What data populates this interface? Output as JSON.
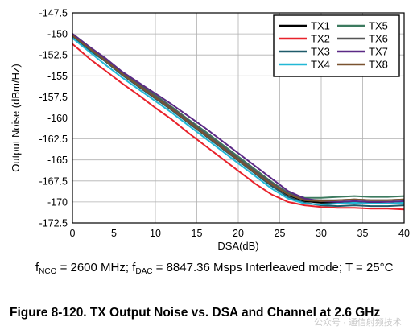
{
  "chart_data": {
    "type": "line",
    "title": "",
    "xlabel": "DSA(dB)",
    "ylabel": "Output Noise (dBm/Hz)",
    "xlim": [
      0,
      40
    ],
    "ylim": [
      -172.5,
      -147.5
    ],
    "xticks": [
      0,
      5,
      10,
      15,
      20,
      25,
      30,
      35,
      40
    ],
    "yticks": [
      -147.5,
      -150,
      -152.5,
      -155,
      -157.5,
      -160,
      -162.5,
      -165,
      -167.5,
      -170,
      -172.5
    ],
    "xtick_labels": [
      "0",
      "5",
      "10",
      "15",
      "20",
      "25",
      "30",
      "35",
      "40"
    ],
    "ytick_labels": [
      "-147.5",
      "-150",
      "-152.5",
      "-155",
      "-157.5",
      "-160",
      "-162.5",
      "-165",
      "-167.5",
      "-170",
      "-172.5"
    ],
    "grid": true,
    "legend_position": "top-right",
    "x": [
      0,
      2,
      4,
      6,
      8,
      10,
      12,
      14,
      16,
      18,
      20,
      22,
      24,
      26,
      28,
      30,
      32,
      34,
      36,
      38,
      40
    ],
    "series": [
      {
        "name": "TX1",
        "color": "#000000",
        "values": [
          -150.2,
          -151.8,
          -153.2,
          -154.8,
          -156.1,
          -157.5,
          -158.9,
          -160.4,
          -161.9,
          -163.4,
          -164.9,
          -166.4,
          -167.9,
          -169.2,
          -169.9,
          -170.1,
          -170.1,
          -170.0,
          -170.1,
          -170.2,
          -170.1
        ]
      },
      {
        "name": "TX2",
        "color": "#e8222b",
        "values": [
          -151.2,
          -152.9,
          -154.4,
          -155.9,
          -157.3,
          -158.8,
          -160.2,
          -161.8,
          -163.3,
          -164.8,
          -166.3,
          -167.8,
          -169.1,
          -170.0,
          -170.4,
          -170.6,
          -170.7,
          -170.7,
          -170.8,
          -170.8,
          -170.9
        ]
      },
      {
        "name": "TX3",
        "color": "#1f5a6a",
        "values": [
          -150.3,
          -151.9,
          -153.3,
          -154.9,
          -156.3,
          -157.7,
          -159.1,
          -160.6,
          -162.1,
          -163.6,
          -165.1,
          -166.6,
          -168.1,
          -169.4,
          -170.1,
          -170.4,
          -170.5,
          -170.4,
          -170.5,
          -170.5,
          -170.4
        ]
      },
      {
        "name": "TX4",
        "color": "#22b8d6",
        "values": [
          -150.5,
          -152.1,
          -153.7,
          -155.2,
          -156.6,
          -158.0,
          -159.4,
          -160.9,
          -162.4,
          -163.9,
          -165.4,
          -166.9,
          -168.4,
          -169.6,
          -170.2,
          -170.3,
          -170.2,
          -170.1,
          -170.2,
          -170.2,
          -170.1
        ]
      },
      {
        "name": "TX5",
        "color": "#3c7a5f",
        "values": [
          -150.0,
          -151.5,
          -153.0,
          -154.6,
          -156.0,
          -157.3,
          -158.7,
          -160.2,
          -161.6,
          -163.1,
          -164.6,
          -166.1,
          -167.6,
          -168.9,
          -169.5,
          -169.5,
          -169.4,
          -169.3,
          -169.4,
          -169.4,
          -169.3
        ]
      },
      {
        "name": "TX6",
        "color": "#555555",
        "values": [
          -150.1,
          -151.6,
          -153.1,
          -154.7,
          -156.0,
          -157.4,
          -158.8,
          -160.3,
          -161.8,
          -163.3,
          -164.8,
          -166.3,
          -167.7,
          -169.0,
          -169.7,
          -169.8,
          -169.8,
          -169.7,
          -169.8,
          -169.8,
          -169.7
        ]
      },
      {
        "name": "TX7",
        "color": "#5b2a86",
        "values": [
          -150.0,
          -151.5,
          -152.9,
          -154.5,
          -155.8,
          -157.1,
          -158.4,
          -159.8,
          -161.2,
          -162.7,
          -164.2,
          -165.7,
          -167.2,
          -168.7,
          -169.6,
          -169.9,
          -170.0,
          -169.9,
          -170.0,
          -170.0,
          -169.9
        ]
      },
      {
        "name": "TX8",
        "color": "#7a5230",
        "values": [
          -150.2,
          -151.7,
          -153.2,
          -154.8,
          -156.2,
          -157.6,
          -159.0,
          -160.5,
          -162.0,
          -163.5,
          -165.0,
          -166.5,
          -167.9,
          -169.1,
          -169.8,
          -169.9,
          -169.8,
          -169.7,
          -169.8,
          -169.8,
          -169.7
        ]
      }
    ]
  },
  "conditions": {
    "f1_sym": "f",
    "f1_sub": "NCO",
    "f1_text": " = 2600 MHz; ",
    "f2_sym": "f",
    "f2_sub": "DAC",
    "f2_text": " = 8847.36 Msps Interleaved mode; T = 25°C"
  },
  "caption": "Figure 8-120. TX Output Noise vs. DSA and Channel at 2.6 GHz",
  "watermark": "公众号 · 通信射频技术"
}
